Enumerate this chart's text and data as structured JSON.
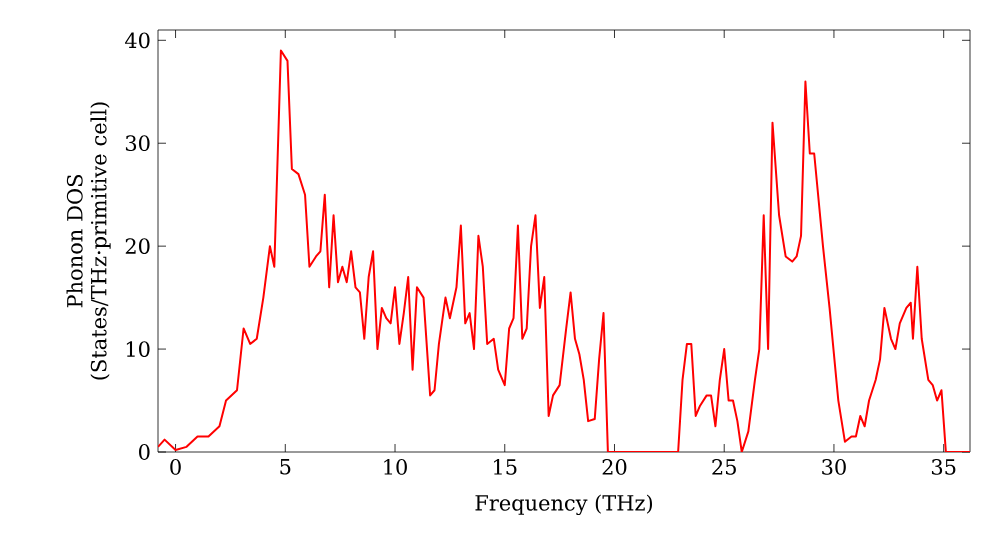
{
  "chart_data": {
    "type": "line",
    "xlabel": "Frequency (THz)",
    "ylabel": "Phonon DOS (States/THz·primitive cell)",
    "xlim": [
      -0.8,
      36.2
    ],
    "ylim": [
      0,
      41
    ],
    "xticks": [
      0,
      5,
      10,
      15,
      20,
      25,
      30,
      35
    ],
    "yticks": [
      0,
      10,
      20,
      30,
      40
    ],
    "grid": false,
    "series": [
      {
        "color": "#ff0000",
        "x": [
          -0.8,
          -0.5,
          0,
          0.5,
          1,
          1.5,
          2,
          2.3,
          2.8,
          3.1,
          3.4,
          3.7,
          4,
          4.3,
          4.5,
          4.8,
          5.1,
          5.3,
          5.6,
          5.9,
          6.1,
          6.4,
          6.6,
          6.8,
          7.0,
          7.2,
          7.4,
          7.6,
          7.8,
          8.0,
          8.2,
          8.4,
          8.6,
          8.8,
          9.0,
          9.2,
          9.4,
          9.6,
          9.8,
          10.0,
          10.2,
          10.4,
          10.6,
          10.8,
          11.0,
          11.3,
          11.6,
          11.8,
          12.0,
          12.3,
          12.5,
          12.8,
          13.0,
          13.2,
          13.4,
          13.6,
          13.8,
          14.0,
          14.2,
          14.5,
          14.7,
          15.0,
          15.2,
          15.4,
          15.6,
          15.8,
          16.0,
          16.2,
          16.4,
          16.6,
          16.8,
          17.0,
          17.2,
          17.5,
          17.8,
          18.0,
          18.2,
          18.4,
          18.6,
          18.8,
          19.1,
          19.3,
          19.5,
          19.7,
          22.9,
          23.1,
          23.3,
          23.5,
          23.7,
          23.9,
          24.2,
          24.4,
          24.6,
          24.8,
          25.0,
          25.2,
          25.4,
          25.6,
          25.8,
          26.1,
          26.4,
          26.6,
          26.8,
          27.0,
          27.2,
          27.5,
          27.8,
          28.1,
          28.3,
          28.5,
          28.7,
          28.9,
          29.1,
          29.5,
          29.8,
          30.2,
          30.5,
          30.8,
          31.0,
          31.2,
          31.4,
          31.6,
          31.9,
          32.1,
          32.3,
          32.6,
          32.8,
          33.0,
          33.3,
          33.5,
          33.6,
          33.8,
          34.0,
          34.3,
          34.5,
          34.7,
          34.9,
          35.1,
          36.2
        ],
        "values": [
          0.5,
          1.2,
          0.2,
          0.5,
          1.5,
          1.5,
          2.5,
          5,
          6,
          12,
          10.5,
          11,
          15,
          20,
          18,
          39,
          38,
          27.5,
          27,
          25,
          18,
          19,
          19.5,
          25,
          16,
          23,
          16.5,
          18,
          16.5,
          19.5,
          16,
          15.5,
          11,
          17,
          19.5,
          10,
          14,
          13,
          12.5,
          16,
          10.5,
          13.5,
          17,
          8,
          16,
          15,
          5.5,
          6,
          10.5,
          15,
          13,
          16,
          22,
          12.5,
          13.5,
          10,
          21,
          18,
          10.5,
          11,
          8,
          6.5,
          12,
          13,
          22,
          11,
          12,
          20,
          23,
          14,
          17,
          3.5,
          5.5,
          6.5,
          12,
          15.5,
          11,
          9.5,
          7,
          3,
          3.2,
          9,
          13.5,
          0,
          0,
          7,
          10.5,
          10.5,
          3.5,
          4.5,
          5.5,
          5.5,
          2.5,
          7,
          10,
          5,
          5,
          3,
          0,
          2,
          7,
          10,
          23,
          10,
          32,
          23,
          19,
          18.5,
          19,
          21,
          36,
          29,
          29,
          20,
          14,
          5,
          1,
          1.5,
          1.5,
          3.5,
          2.5,
          5,
          7,
          9,
          14,
          11,
          10,
          12.5,
          14,
          14.5,
          11,
          18,
          11,
          7,
          6.5,
          5,
          6,
          0,
          0
        ]
      }
    ]
  }
}
